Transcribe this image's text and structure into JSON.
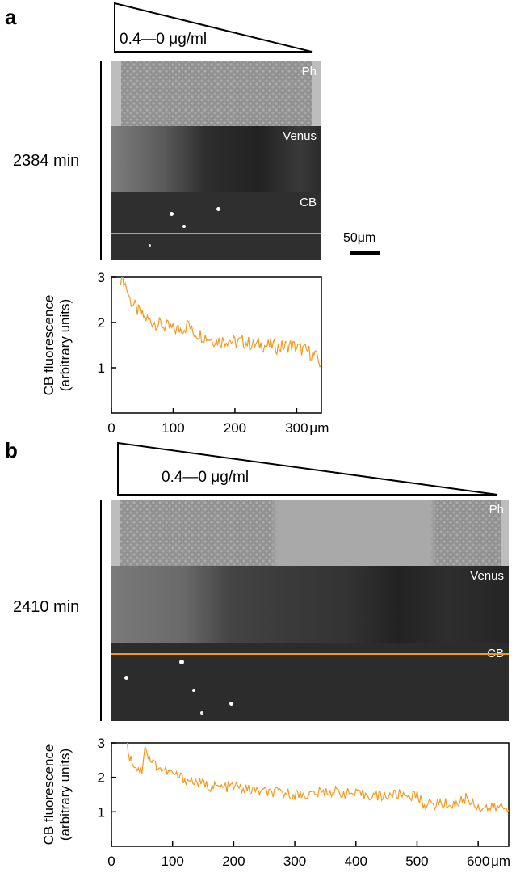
{
  "figure": {
    "panels": [
      {
        "letter": "a",
        "time_label": "2384 min",
        "gradient_label": "0.4—0 μg/ml",
        "channel_labels": [
          "Ph",
          "Venus",
          "CB"
        ],
        "scale_bar_label": "50μm"
      },
      {
        "letter": "b",
        "time_label": "2410 min",
        "gradient_label": "0.4—0 μg/ml",
        "channel_labels": [
          "Ph",
          "Venus",
          "CB"
        ]
      }
    ]
  },
  "colors": {
    "trace": "#f29a1e",
    "orange_line": "#ee9a1a",
    "ph_band": "#9c9c9c",
    "venus_band": "#232323",
    "cb_band": "#2e2e2e"
  },
  "chart_data": [
    {
      "type": "line",
      "title": "",
      "ylabel_line1": "CB fluorescence",
      "ylabel_line2": "(arbitrary units)",
      "xlabel": "",
      "x_unit_label": "μm",
      "xlim": [
        0,
        340
      ],
      "ylim": [
        0,
        3
      ],
      "xticks": [
        0,
        100,
        200,
        300
      ],
      "yticks": [
        1,
        2,
        3
      ],
      "series": [
        {
          "x": [
            15,
            20,
            25,
            30,
            40,
            50,
            60,
            70,
            80,
            90,
            100,
            110,
            120,
            125,
            130,
            140,
            150,
            160,
            170,
            180,
            190,
            200,
            210,
            220,
            230,
            240,
            250,
            260,
            270,
            280,
            290,
            300,
            310,
            320,
            330,
            335,
            340
          ],
          "y": [
            3.0,
            2.95,
            2.75,
            2.5,
            2.3,
            2.15,
            2.05,
            2.0,
            1.95,
            1.9,
            1.85,
            1.85,
            1.9,
            2.0,
            1.8,
            1.75,
            1.7,
            1.65,
            1.6,
            1.6,
            1.62,
            1.55,
            1.58,
            1.55,
            1.5,
            1.52,
            1.48,
            1.5,
            1.45,
            1.47,
            1.5,
            1.45,
            1.4,
            1.35,
            1.25,
            1.15,
            1.05
          ]
        }
      ]
    },
    {
      "type": "line",
      "title": "",
      "ylabel_line1": "CB fluorescence",
      "ylabel_line2": "(arbitrary units)",
      "xlabel": "",
      "x_unit_label": "μm",
      "xlim": [
        0,
        650
      ],
      "ylim": [
        0,
        3
      ],
      "xticks": [
        0,
        100,
        200,
        300,
        400,
        500,
        600
      ],
      "yticks": [
        1,
        2,
        3
      ],
      "series": [
        {
          "x": [
            25,
            30,
            40,
            50,
            55,
            60,
            70,
            80,
            100,
            120,
            140,
            160,
            180,
            200,
            220,
            240,
            260,
            280,
            300,
            320,
            340,
            360,
            380,
            400,
            420,
            440,
            460,
            480,
            500,
            510,
            520,
            540,
            560,
            570,
            580,
            600,
            620,
            640,
            650
          ],
          "y": [
            3.0,
            2.6,
            2.3,
            2.2,
            3.0,
            2.6,
            2.4,
            2.25,
            2.1,
            1.95,
            1.85,
            1.75,
            1.7,
            1.75,
            1.65,
            1.6,
            1.55,
            1.55,
            1.5,
            1.5,
            1.55,
            1.6,
            1.55,
            1.5,
            1.5,
            1.45,
            1.5,
            1.5,
            1.45,
            1.25,
            1.2,
            1.25,
            1.2,
            1.3,
            1.4,
            1.15,
            1.1,
            1.15,
            1.05
          ]
        }
      ]
    }
  ]
}
